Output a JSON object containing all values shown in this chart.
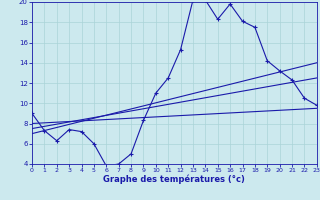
{
  "xlabel": "Graphe des températures (°c)",
  "xlim": [
    0,
    23
  ],
  "ylim": [
    4,
    20
  ],
  "yticks": [
    4,
    6,
    8,
    10,
    12,
    14,
    16,
    18,
    20
  ],
  "xticks": [
    0,
    1,
    2,
    3,
    4,
    5,
    6,
    7,
    8,
    9,
    10,
    11,
    12,
    13,
    14,
    15,
    16,
    17,
    18,
    19,
    20,
    21,
    22,
    23
  ],
  "bg_color": "#cce9ee",
  "grid_color": "#aad4d8",
  "line_color": "#1a1aaa",
  "curve1_x": [
    0,
    1,
    2,
    3,
    4,
    5,
    6,
    7,
    8,
    9,
    10,
    11,
    12,
    13,
    14,
    15,
    16,
    17,
    18,
    19,
    20,
    21,
    22,
    23
  ],
  "curve1_y": [
    9.0,
    7.3,
    6.3,
    7.4,
    7.2,
    6.0,
    3.8,
    4.0,
    5.0,
    8.3,
    11.0,
    12.5,
    15.3,
    20.2,
    20.2,
    18.3,
    19.8,
    18.1,
    17.5,
    14.2,
    13.2,
    12.3,
    10.5,
    9.8
  ],
  "curve2_x": [
    0,
    23
  ],
  "curve2_y": [
    7.0,
    14.0
  ],
  "curve3_x": [
    0,
    23
  ],
  "curve3_y": [
    7.5,
    12.5
  ],
  "curve4_x": [
    0,
    23
  ],
  "curve4_y": [
    8.0,
    9.5
  ]
}
